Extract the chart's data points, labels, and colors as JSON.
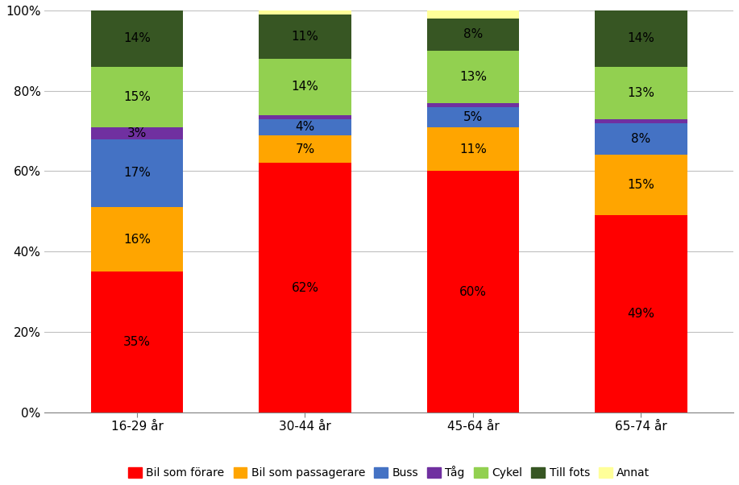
{
  "categories": [
    "16-29 år",
    "30-44 år",
    "45-64 år",
    "65-74 år"
  ],
  "series": [
    {
      "label": "Bil som förare",
      "color": "#FF0000",
      "values": [
        35,
        62,
        60,
        49
      ]
    },
    {
      "label": "Bil som passagerare",
      "color": "#FFA500",
      "values": [
        16,
        7,
        11,
        15
      ]
    },
    {
      "label": "Buss",
      "color": "#4472C4",
      "values": [
        17,
        4,
        5,
        8
      ]
    },
    {
      "label": "Tåg",
      "color": "#7030A0",
      "values": [
        3,
        1,
        1,
        1
      ]
    },
    {
      "label": "Cykel",
      "color": "#92D050",
      "values": [
        15,
        14,
        13,
        13
      ]
    },
    {
      "label": "Till fots",
      "color": "#375623",
      "values": [
        14,
        11,
        8,
        14
      ]
    },
    {
      "label": "Annat",
      "color": "#FFFF99",
      "values": [
        0,
        1,
        2,
        0
      ]
    }
  ],
  "show_label_min": 3,
  "ylim": [
    0,
    100
  ],
  "yticks": [
    0,
    20,
    40,
    60,
    80,
    100
  ],
  "yticklabels": [
    "0%",
    "20%",
    "40%",
    "60%",
    "80%",
    "100%"
  ],
  "bar_width": 0.55,
  "figsize": [
    9.17,
    6.02
  ],
  "dpi": 100,
  "background_color": "#FFFFFF",
  "grid_color": "#C0C0C0",
  "legend_fontsize": 10,
  "tick_fontsize": 11,
  "label_fontsize": 11
}
